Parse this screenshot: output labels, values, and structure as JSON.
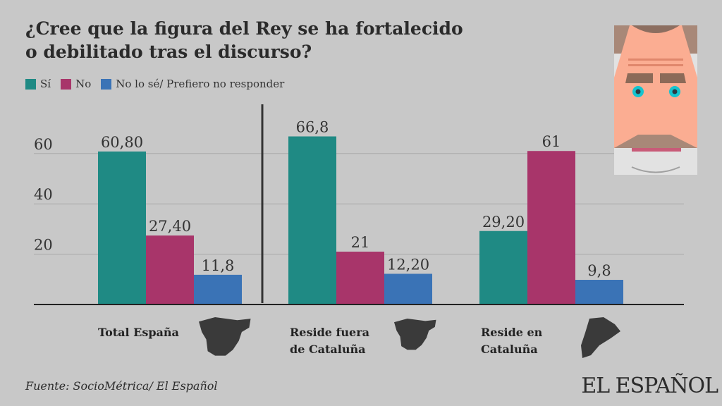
{
  "title_line1": "¿Cree que la figura del Rey se ha fortalecido",
  "title_line2": "o debilitado tras el discurso?",
  "source": "Fuente: SocioMétrica/ El Español",
  "logo": "EL ESPAÑOL",
  "chart_data": {
    "type": "bar",
    "title": "¿Cree que la figura del Rey se ha fortalecido o debilitado tras el discurso?",
    "categories": [
      "Total España",
      "Reside fuera de Cataluña",
      "Reside en Cataluña"
    ],
    "category_lines": [
      [
        "Total España"
      ],
      [
        "Reside fuera",
        "de Cataluña"
      ],
      [
        "Reside en",
        "Cataluña"
      ]
    ],
    "series": [
      {
        "name": "Sí",
        "color": "#1f8a84",
        "values": [
          60.8,
          66.8,
          29.2
        ],
        "labels": [
          "60,80",
          "66,8",
          "29,20"
        ]
      },
      {
        "name": "No",
        "color": "#a8356a",
        "values": [
          27.4,
          21,
          61
        ],
        "labels": [
          "27,40",
          "21",
          "61"
        ]
      },
      {
        "name": "No lo sé/ Prefiero no responder",
        "color": "#3a73b6",
        "values": [
          11.8,
          12.2,
          9.8
        ],
        "labels": [
          "11,8",
          "12,20",
          "9,8"
        ]
      }
    ],
    "yticks": [
      20,
      40,
      60
    ],
    "ylim": [
      0,
      70
    ],
    "grid": true,
    "legend": "top-left"
  }
}
